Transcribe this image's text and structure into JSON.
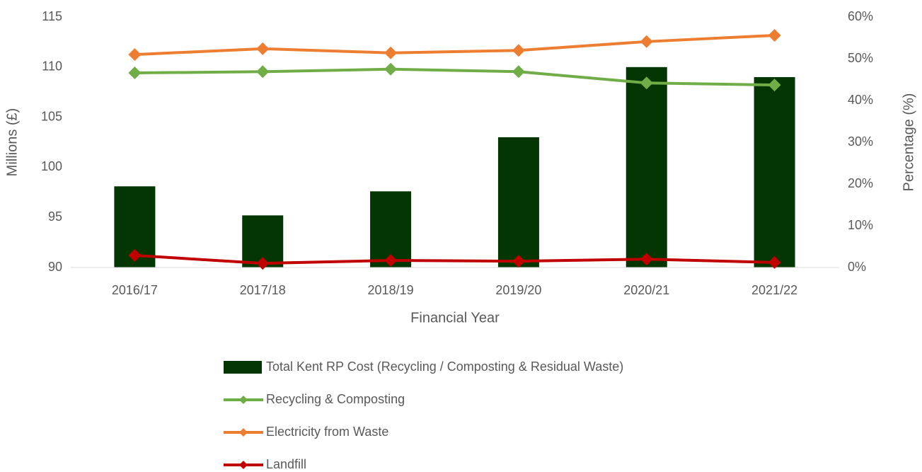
{
  "chart_data": {
    "type": "bar-line",
    "categories": [
      "2016/17",
      "2017/18",
      "2018/19",
      "2019/20",
      "2020/21",
      "2021/22"
    ],
    "series": [
      {
        "name": "Total Kent RP Cost (Recycling / Composting & Residual Waste)",
        "type": "bar",
        "axis": "y",
        "color": "#033603",
        "values": [
          98.1,
          95.2,
          97.6,
          103.0,
          110.0,
          109.0
        ]
      },
      {
        "name": "Recycling & Composting",
        "type": "line",
        "axis": "y2",
        "color": "#70ad47",
        "values": [
          46.6,
          46.9,
          47.5,
          46.9,
          44.2,
          43.7
        ]
      },
      {
        "name": "Electricity from Waste",
        "type": "line",
        "axis": "y2",
        "color": "#ed7d31",
        "values": [
          51.0,
          52.4,
          51.4,
          52.0,
          54.1,
          55.6
        ]
      },
      {
        "name": "Landfill",
        "type": "line",
        "axis": "y2",
        "color": "#c00000",
        "values": [
          2.9,
          1.0,
          1.7,
          1.5,
          2.0,
          1.2
        ]
      }
    ],
    "xlabel": "Financial Year",
    "ylabel": "Millions (£)",
    "y2label": "Percentage (%)",
    "ylim": [
      90,
      115
    ],
    "yticks": [
      90,
      95,
      100,
      105,
      110,
      115
    ],
    "y2lim": [
      0,
      60
    ],
    "y2ticks": [
      {
        "value": 0,
        "label": "0%"
      },
      {
        "value": 10,
        "label": "10%"
      },
      {
        "value": 20,
        "label": "20%"
      },
      {
        "value": 30,
        "label": "30%"
      },
      {
        "value": 40,
        "label": "40%"
      },
      {
        "value": 50,
        "label": "50%"
      },
      {
        "value": 60,
        "label": "60%"
      }
    ],
    "grid": false,
    "legend": "bottom"
  }
}
